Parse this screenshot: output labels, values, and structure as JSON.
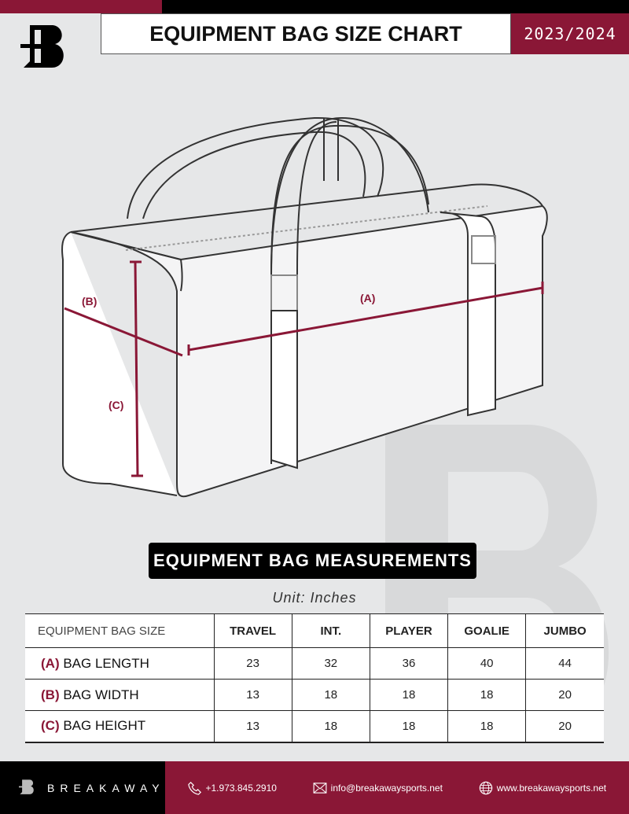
{
  "header": {
    "title": "EQUIPMENT BAG SIZE CHART",
    "season": "2023/2024",
    "logo_letter": "B"
  },
  "diagram": {
    "label_a": "(A)",
    "label_b": "(B)",
    "label_c": "(C)"
  },
  "measurements": {
    "title": "EQUIPMENT BAG MEASUREMENTS",
    "unit": "Unit: Inches",
    "columns": [
      "EQUIPMENT BAG SIZE",
      "TRAVEL",
      "INT.",
      "PLAYER",
      "GOALIE",
      "JUMBO"
    ],
    "rows": [
      {
        "key": "(A)",
        "label": "BAG LENGTH",
        "values": [
          "23",
          "32",
          "36",
          "40",
          "44"
        ]
      },
      {
        "key": "(B)",
        "label": "BAG WIDTH",
        "values": [
          "13",
          "18",
          "18",
          "18",
          "20"
        ]
      },
      {
        "key": "(C)",
        "label": "BAG HEIGHT",
        "values": [
          "13",
          "18",
          "18",
          "18",
          "20"
        ]
      }
    ]
  },
  "footer": {
    "brand": "BREAKAWAY",
    "phone": "+1.973.845.2910",
    "email": "info@breakawaysports.net",
    "website": "www.breakawaysports.net"
  },
  "colors": {
    "accent": "#8a1736",
    "background": "#e6e7e8"
  }
}
